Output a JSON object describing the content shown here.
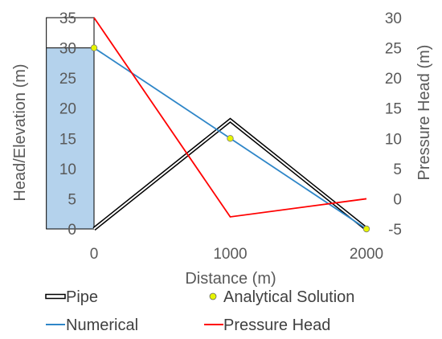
{
  "chart_data": {
    "type": "line",
    "xlabel": "Distance (m)",
    "ylabel": "Head/Elevation (m)",
    "y2label": "Pressure Head (m)",
    "xlim": [
      -350,
      2000
    ],
    "ylim": [
      0,
      35
    ],
    "y2lim": [
      -5,
      30
    ],
    "xticks": [
      "0",
      "1000",
      "2000"
    ],
    "xtick_values": [
      0,
      1000,
      2000
    ],
    "yticks": [
      "0",
      "5",
      "10",
      "15",
      "20",
      "25",
      "30",
      "35"
    ],
    "yticks_values": [
      0,
      5,
      10,
      15,
      20,
      25,
      30,
      35
    ],
    "y2ticks": [
      "-5",
      "0",
      "5",
      "10",
      "15",
      "20",
      "25",
      "30"
    ],
    "y2ticks_values": [
      -5,
      0,
      5,
      10,
      15,
      20,
      25,
      30
    ],
    "reservoir": {
      "x_range": [
        -350,
        0
      ],
      "level": 30,
      "top": 35,
      "color": "#b4d2ec"
    },
    "series": [
      {
        "name": "Pipe",
        "axis": "left",
        "style": "double-line",
        "color": "#000000",
        "x": [
          0,
          1000,
          2000
        ],
        "y": [
          0,
          18,
          0
        ]
      },
      {
        "name": "Analytical Solution",
        "axis": "left",
        "style": "markers",
        "color": "#e6f500",
        "x": [
          0,
          1000,
          2000
        ],
        "y": [
          30,
          15,
          0
        ]
      },
      {
        "name": "Numerical",
        "axis": "left",
        "style": "line",
        "color": "#2e86c8",
        "x": [
          0,
          1000,
          2000
        ],
        "y": [
          30,
          15,
          0
        ]
      },
      {
        "name": "Pressure Head",
        "axis": "right",
        "style": "line",
        "color": "#ff0000",
        "x": [
          0,
          1000,
          2000
        ],
        "y": [
          30,
          -3,
          0
        ]
      }
    ],
    "legend": {
      "position": "bottom",
      "entries": [
        "Pipe",
        "Analytical Solution",
        "Numerical",
        "Pressure Head"
      ]
    }
  }
}
